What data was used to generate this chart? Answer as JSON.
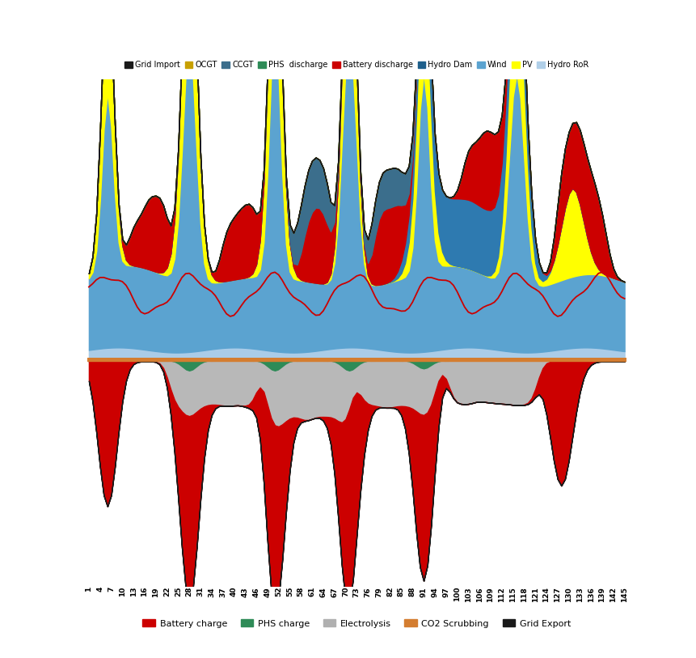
{
  "top_legend": [
    {
      "label": "Grid Import",
      "color": "#1a1a1a"
    },
    {
      "label": "OCGT",
      "color": "#c8a000"
    },
    {
      "label": "CCGT",
      "color": "#3b6e8c"
    },
    {
      "label": "PHS  discharge",
      "color": "#2e8b57"
    },
    {
      "label": "Battery discharge",
      "color": "#cc0000"
    },
    {
      "label": "Hydro Dam",
      "color": "#1f5f8b"
    },
    {
      "label": "Wind",
      "color": "#5ba3d0"
    },
    {
      "label": "PV",
      "color": "#ffff00"
    },
    {
      "label": "Hydro RoR",
      "color": "#b0cfe8"
    }
  ],
  "bottom_legend": [
    {
      "label": "Battery charge",
      "color": "#cc0000"
    },
    {
      "label": "PHS charge",
      "color": "#2e8b57"
    },
    {
      "label": "Electrolysis",
      "color": "#b0b0b0"
    },
    {
      "label": "CO2 Scrubbing",
      "color": "#d47d30"
    },
    {
      "label": "Grid Export",
      "color": "#1a1a1a"
    }
  ],
  "wind_color": "#5ba3d0",
  "pv_color": "#ffff00",
  "hydro_ror_color": "#aacce8",
  "hydro_dam_color": "#2e7ab0",
  "battery_discharge_color": "#cc0000",
  "phs_discharge_color": "#2e8b57",
  "ccgt_color": "#3b6e8c",
  "ocgt_color": "#c8a000",
  "grid_import_color": "#1a1a1a",
  "battery_charge_color": "#cc0000",
  "phs_charge_color": "#2e8b57",
  "electrolysis_color": "#b8b8b8",
  "co2_scrubbing_color": "#d47d30",
  "grid_export_color": "#1a1a1a",
  "line_color": "#cc0000",
  "background_color": "#ffffff"
}
